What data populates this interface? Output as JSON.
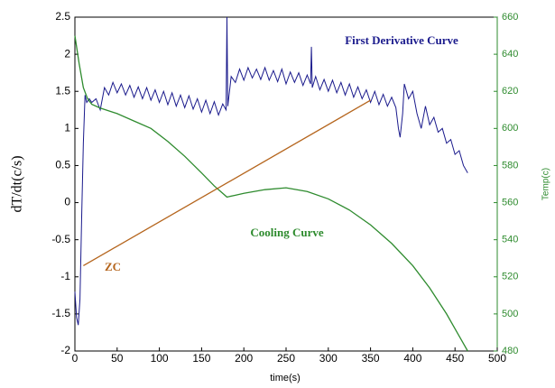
{
  "chart_data": {
    "type": "line",
    "x_label": "time(s)",
    "y_label": "dT/dt(c/s)",
    "y2_label": "Temp(c)",
    "xlim": [
      0,
      500
    ],
    "xticks": [
      0,
      50,
      100,
      150,
      200,
      250,
      300,
      350,
      400,
      450,
      500
    ],
    "ylim": [
      -2,
      2.5
    ],
    "yticks": [
      -2,
      -1.5,
      -1,
      -0.5,
      0,
      0.5,
      1,
      1.5,
      2,
      2.5
    ],
    "y2lim": [
      480,
      660
    ],
    "y2ticks": [
      480,
      500,
      520,
      540,
      560,
      580,
      600,
      620,
      640,
      660
    ],
    "y2_color": "#2e8b2e",
    "grid": false,
    "series": [
      {
        "name": "First Derivative Curve",
        "color": "#1a1a8c",
        "x": [
          0,
          2,
          4,
          6,
          8,
          10,
          12,
          14,
          17,
          20,
          25,
          30,
          35,
          40,
          45,
          50,
          55,
          60,
          65,
          70,
          75,
          80,
          85,
          90,
          95,
          100,
          105,
          110,
          115,
          120,
          125,
          130,
          135,
          140,
          145,
          150,
          155,
          160,
          165,
          170,
          175,
          179,
          180,
          181,
          185,
          190,
          195,
          200,
          205,
          210,
          215,
          220,
          225,
          230,
          235,
          240,
          245,
          250,
          255,
          260,
          265,
          270,
          275,
          279,
          280,
          281,
          285,
          290,
          295,
          300,
          305,
          310,
          315,
          320,
          325,
          330,
          335,
          340,
          345,
          350,
          355,
          360,
          365,
          370,
          375,
          380,
          383,
          385,
          388,
          390,
          395,
          400,
          405,
          410,
          415,
          420,
          425,
          430,
          435,
          440,
          445,
          450,
          455,
          460,
          465
        ],
        "values": [
          -1.2,
          -1.55,
          -1.65,
          -1.3,
          -0.2,
          0.8,
          1.45,
          1.35,
          1.4,
          1.35,
          1.4,
          1.25,
          1.55,
          1.45,
          1.62,
          1.48,
          1.6,
          1.45,
          1.58,
          1.42,
          1.56,
          1.4,
          1.55,
          1.38,
          1.52,
          1.35,
          1.5,
          1.32,
          1.48,
          1.3,
          1.45,
          1.28,
          1.44,
          1.26,
          1.4,
          1.22,
          1.38,
          1.2,
          1.36,
          1.18,
          1.33,
          1.25,
          2.5,
          1.3,
          1.7,
          1.62,
          1.8,
          1.65,
          1.82,
          1.68,
          1.8,
          1.66,
          1.82,
          1.65,
          1.78,
          1.63,
          1.8,
          1.6,
          1.76,
          1.62,
          1.75,
          1.58,
          1.72,
          1.6,
          2.1,
          1.55,
          1.7,
          1.52,
          1.66,
          1.5,
          1.65,
          1.48,
          1.62,
          1.45,
          1.6,
          1.42,
          1.56,
          1.4,
          1.52,
          1.35,
          1.5,
          1.32,
          1.46,
          1.3,
          1.42,
          1.28,
          1.0,
          0.88,
          1.2,
          1.6,
          1.4,
          1.5,
          1.2,
          1.0,
          1.3,
          1.05,
          1.15,
          0.95,
          1.0,
          0.8,
          0.85,
          0.65,
          0.7,
          0.5,
          0.4
        ]
      },
      {
        "name": "Cooling Curve",
        "color": "#2e8b2e",
        "axis": "y2",
        "x": [
          0,
          5,
          10,
          15,
          20,
          30,
          50,
          70,
          90,
          110,
          130,
          150,
          165,
          175,
          180,
          190,
          200,
          225,
          250,
          275,
          300,
          325,
          350,
          375,
          400,
          420,
          440,
          455,
          465
        ],
        "values": [
          650,
          635,
          622,
          616,
          613,
          611,
          608,
          604,
          600,
          593,
          585,
          576,
          569,
          565,
          563,
          564,
          565,
          567,
          568,
          566,
          562,
          556,
          548,
          538,
          526,
          514,
          500,
          488,
          480
        ]
      },
      {
        "name": "ZC",
        "color": "#b5651d",
        "x": [
          10,
          350
        ],
        "values": [
          -0.85,
          1.38
        ]
      }
    ]
  }
}
